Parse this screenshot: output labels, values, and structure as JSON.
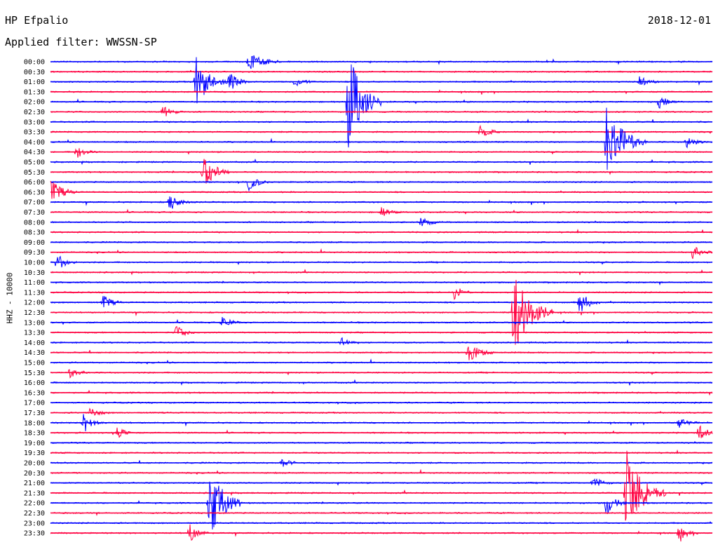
{
  "header": {
    "station": "HP Efpalio",
    "date": "2018-12-01",
    "filter": "Applied filter: WWSSN-SP"
  },
  "chart_data": {
    "type": "line",
    "title": "HP Efpalio",
    "ylabel": "HHZ - 10000",
    "tick_labels": [
      "00:00",
      "00:30",
      "01:00",
      "01:30",
      "02:00",
      "02:30",
      "03:00",
      "03:30",
      "04:00",
      "04:30",
      "05:00",
      "05:30",
      "06:00",
      "06:30",
      "07:00",
      "07:30",
      "08:00",
      "08:30",
      "09:00",
      "09:30",
      "10:00",
      "10:30",
      "11:00",
      "11:30",
      "12:00",
      "12:30",
      "13:00",
      "13:30",
      "14:00",
      "14:30",
      "15:00",
      "15:30",
      "16:00",
      "16:30",
      "17:00",
      "17:30",
      "18:00",
      "18:30",
      "19:00",
      "19:30",
      "20:00",
      "20:30",
      "21:00",
      "21:30",
      "22:00",
      "22:30",
      "23:00",
      "23:30"
    ],
    "trace_colors": [
      "#0000ff",
      "#ff0040"
    ],
    "events": [
      {
        "trace": 0,
        "pos": 0.3,
        "amp": 1.0,
        "dur": 0.05
      },
      {
        "trace": 2,
        "pos": 0.22,
        "amp": 2.8,
        "dur": 0.05
      },
      {
        "trace": 2,
        "pos": 0.27,
        "amp": 1.2,
        "dur": 0.03
      },
      {
        "trace": 2,
        "pos": 0.37,
        "amp": 0.6,
        "dur": 0.03
      },
      {
        "trace": 2,
        "pos": 0.89,
        "amp": 0.6,
        "dur": 0.03
      },
      {
        "trace": 4,
        "pos": 0.45,
        "amp": 6.0,
        "dur": 0.05
      },
      {
        "trace": 4,
        "pos": 0.92,
        "amp": 0.7,
        "dur": 0.03
      },
      {
        "trace": 5,
        "pos": 0.17,
        "amp": 0.7,
        "dur": 0.03
      },
      {
        "trace": 7,
        "pos": 0.65,
        "amp": 0.8,
        "dur": 0.03
      },
      {
        "trace": 8,
        "pos": 0.84,
        "amp": 4.5,
        "dur": 0.06
      },
      {
        "trace": 8,
        "pos": 0.96,
        "amp": 0.8,
        "dur": 0.03
      },
      {
        "trace": 9,
        "pos": 0.04,
        "amp": 0.7,
        "dur": 0.03
      },
      {
        "trace": 11,
        "pos": 0.23,
        "amp": 2.2,
        "dur": 0.04
      },
      {
        "trace": 12,
        "pos": 0.3,
        "amp": 1.0,
        "dur": 0.03
      },
      {
        "trace": 13,
        "pos": 0.0,
        "amp": 1.5,
        "dur": 0.04
      },
      {
        "trace": 14,
        "pos": 0.18,
        "amp": 1.2,
        "dur": 0.03
      },
      {
        "trace": 15,
        "pos": 0.5,
        "amp": 0.6,
        "dur": 0.03
      },
      {
        "trace": 16,
        "pos": 0.56,
        "amp": 0.7,
        "dur": 0.03
      },
      {
        "trace": 19,
        "pos": 0.97,
        "amp": 0.8,
        "dur": 0.03
      },
      {
        "trace": 20,
        "pos": 0.01,
        "amp": 1.0,
        "dur": 0.03
      },
      {
        "trace": 23,
        "pos": 0.61,
        "amp": 0.8,
        "dur": 0.03
      },
      {
        "trace": 24,
        "pos": 0.08,
        "amp": 0.8,
        "dur": 0.03
      },
      {
        "trace": 24,
        "pos": 0.8,
        "amp": 1.4,
        "dur": 0.03
      },
      {
        "trace": 25,
        "pos": 0.7,
        "amp": 5.0,
        "dur": 0.06
      },
      {
        "trace": 26,
        "pos": 0.26,
        "amp": 0.7,
        "dur": 0.03
      },
      {
        "trace": 27,
        "pos": 0.19,
        "amp": 0.8,
        "dur": 0.03
      },
      {
        "trace": 28,
        "pos": 0.44,
        "amp": 0.6,
        "dur": 0.03
      },
      {
        "trace": 29,
        "pos": 0.63,
        "amp": 1.2,
        "dur": 0.04
      },
      {
        "trace": 31,
        "pos": 0.03,
        "amp": 0.6,
        "dur": 0.03
      },
      {
        "trace": 35,
        "pos": 0.06,
        "amp": 0.6,
        "dur": 0.03
      },
      {
        "trace": 36,
        "pos": 0.05,
        "amp": 1.2,
        "dur": 0.03
      },
      {
        "trace": 36,
        "pos": 0.95,
        "amp": 0.6,
        "dur": 0.03
      },
      {
        "trace": 37,
        "pos": 0.1,
        "amp": 0.7,
        "dur": 0.03
      },
      {
        "trace": 37,
        "pos": 0.98,
        "amp": 0.9,
        "dur": 0.03
      },
      {
        "trace": 40,
        "pos": 0.35,
        "amp": 0.5,
        "dur": 0.03
      },
      {
        "trace": 42,
        "pos": 0.82,
        "amp": 0.7,
        "dur": 0.03
      },
      {
        "trace": 43,
        "pos": 0.87,
        "amp": 5.0,
        "dur": 0.06
      },
      {
        "trace": 44,
        "pos": 0.24,
        "amp": 4.5,
        "dur": 0.05
      },
      {
        "trace": 44,
        "pos": 0.84,
        "amp": 1.5,
        "dur": 0.03
      },
      {
        "trace": 47,
        "pos": 0.21,
        "amp": 1.0,
        "dur": 0.03
      },
      {
        "trace": 47,
        "pos": 0.95,
        "amp": 0.8,
        "dur": 0.03
      }
    ]
  }
}
